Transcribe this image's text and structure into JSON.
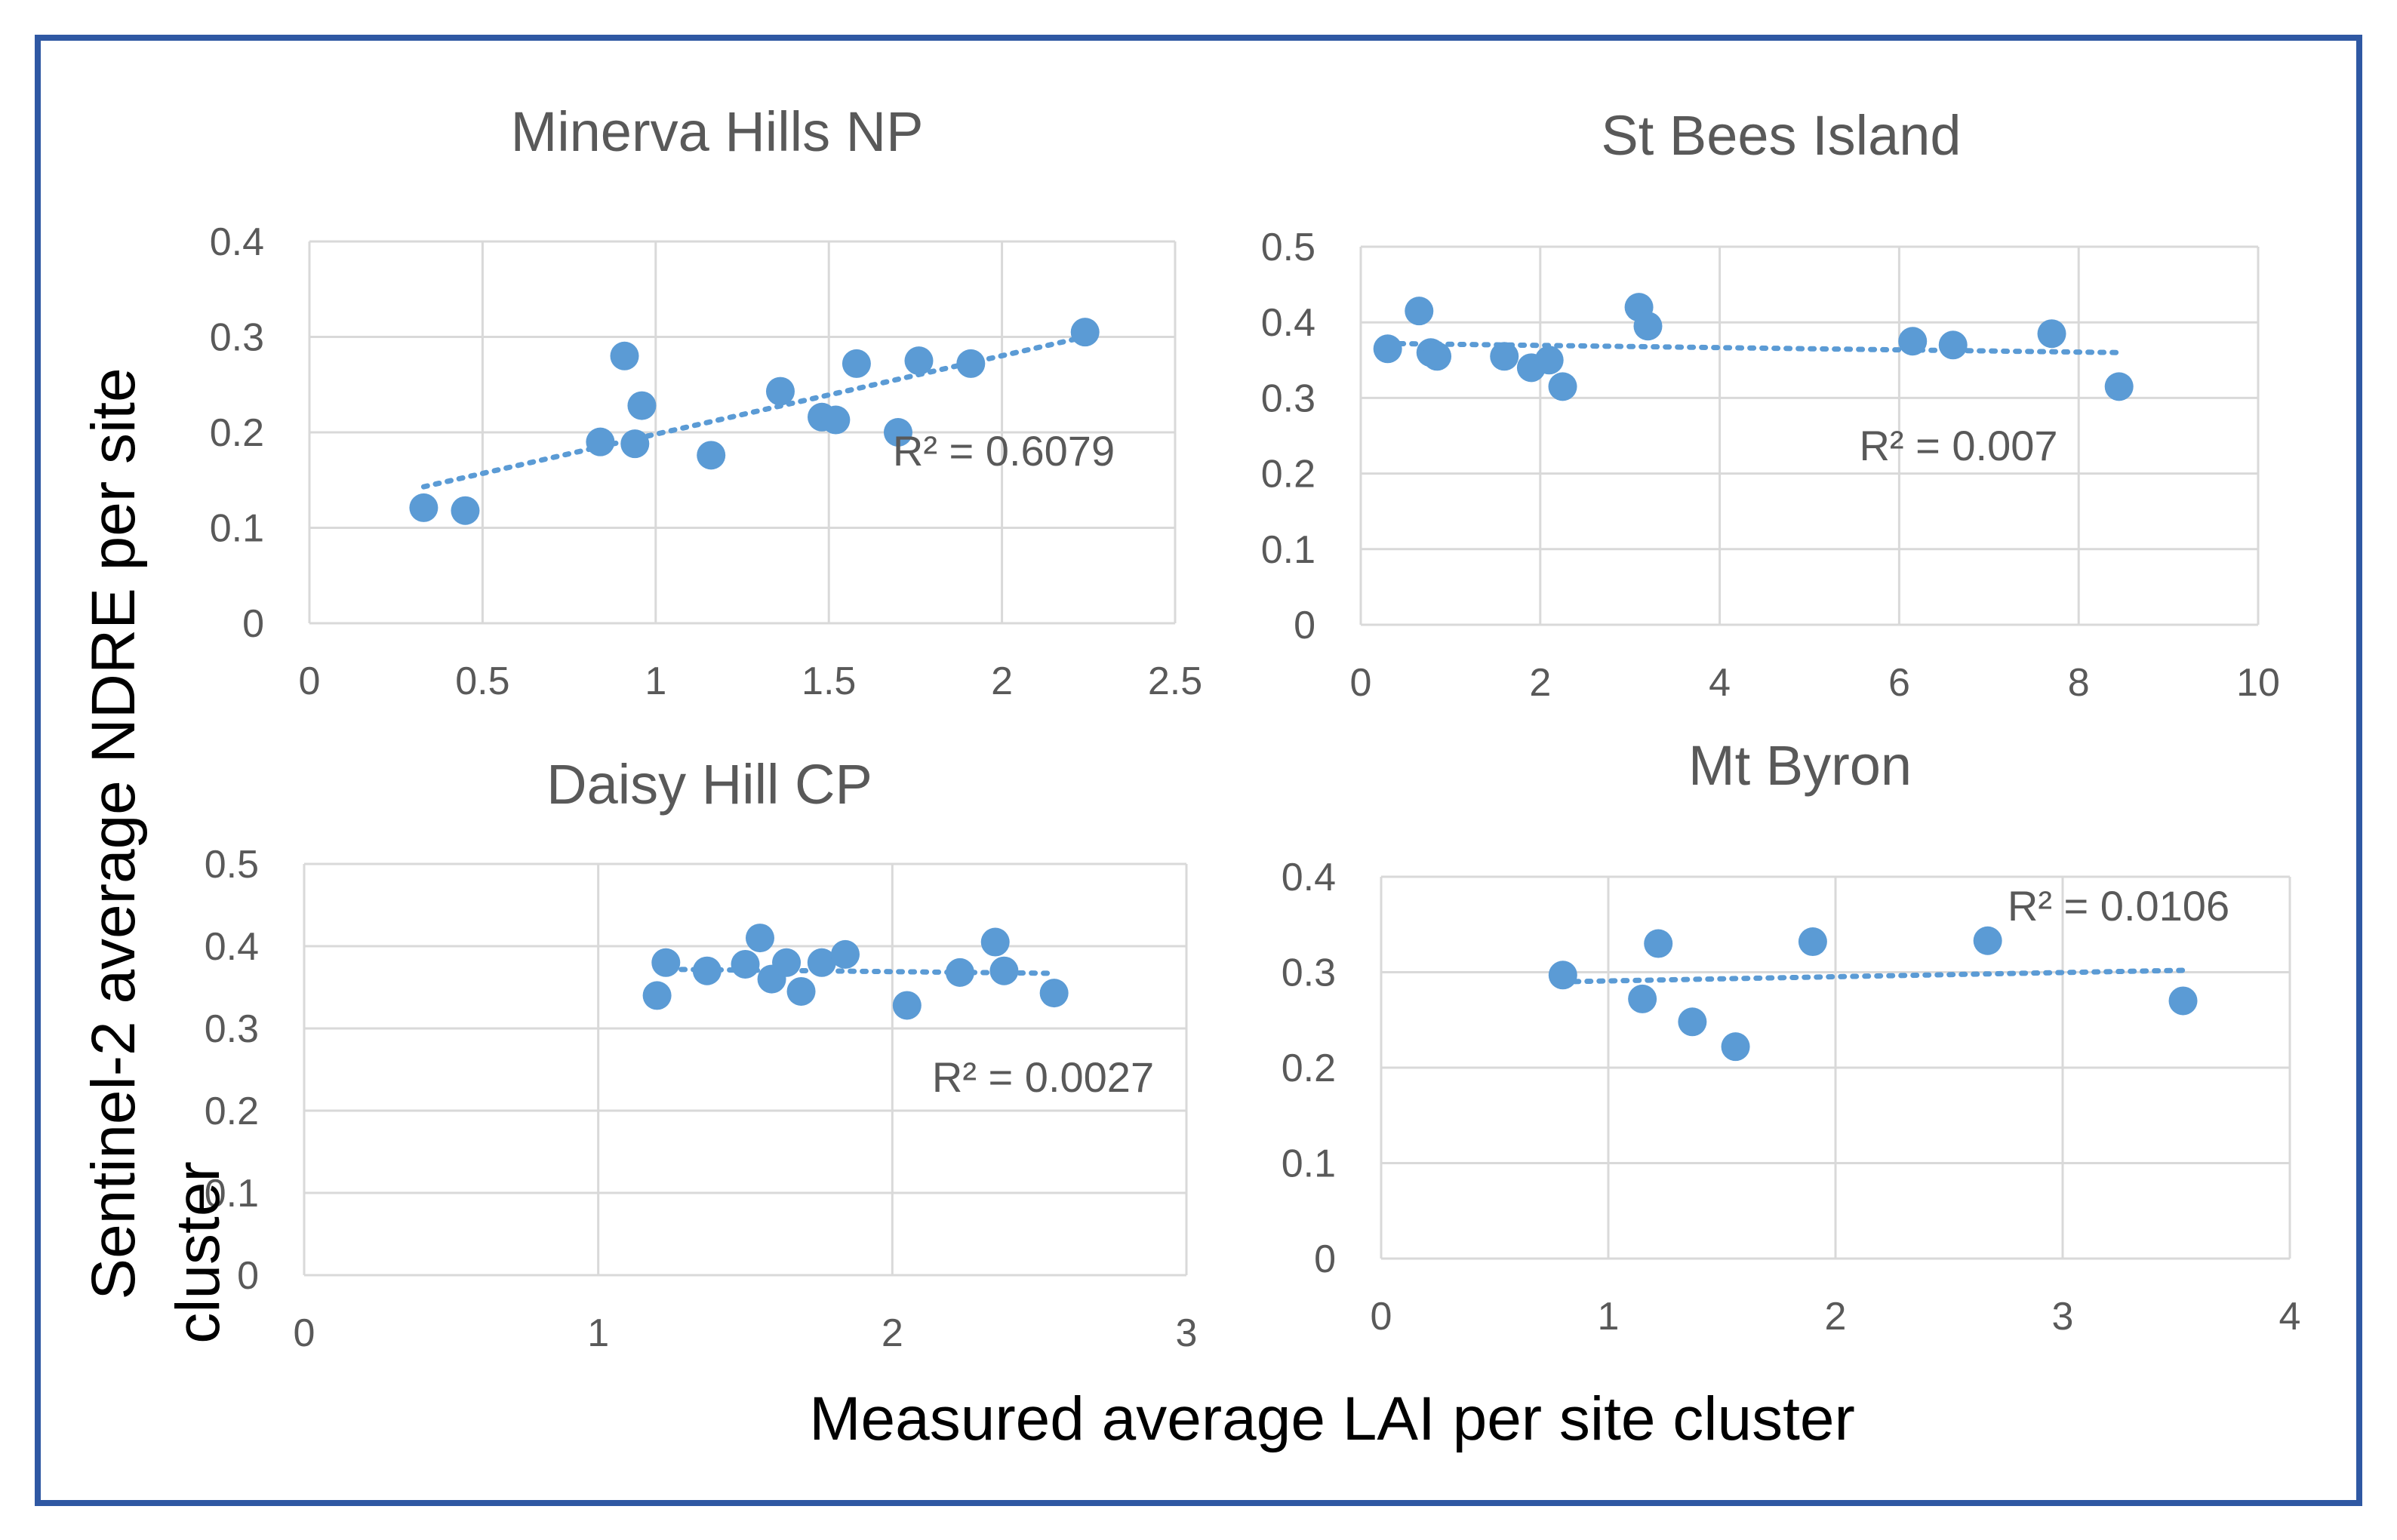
{
  "colors": {
    "frame": "#2f58a3",
    "marker": "#5b9bd5",
    "grid": "#d9d9d9",
    "text": "#595959"
  },
  "figure": {
    "y_label_line1": "Sentinel-2 average NDRE per site",
    "y_label_line2": "cluster",
    "x_label": "Measured average LAI per site cluster"
  },
  "chart_data": [
    {
      "type": "scatter",
      "title": "Minerva Hills NP",
      "xlabel": "",
      "ylabel": "",
      "xlim": [
        0,
        2.5
      ],
      "ylim": [
        0,
        0.4
      ],
      "xticks": [
        0,
        0.5,
        1,
        1.5,
        2,
        2.5
      ],
      "yticks": [
        0,
        0.1,
        0.2,
        0.3,
        0.4
      ],
      "grid": true,
      "x": [
        0.33,
        0.45,
        0.84,
        0.91,
        0.94,
        0.96,
        1.16,
        1.36,
        1.48,
        1.52,
        1.58,
        1.7,
        1.76,
        1.91,
        2.24
      ],
      "y": [
        0.121,
        0.118,
        0.19,
        0.28,
        0.188,
        0.228,
        0.176,
        0.243,
        0.216,
        0.213,
        0.272,
        0.2,
        0.275,
        0.272,
        0.305
      ],
      "trendline": {
        "x": [
          0.33,
          2.24
        ],
        "y": [
          0.143,
          0.3
        ]
      },
      "r2_label": "R² = 0.6079"
    },
    {
      "type": "scatter",
      "title": "St Bees Island",
      "xlabel": "",
      "ylabel": "",
      "xlim": [
        0,
        10
      ],
      "ylim": [
        0,
        0.5
      ],
      "xticks": [
        0,
        2,
        4,
        6,
        8,
        10
      ],
      "yticks": [
        0,
        0.1,
        0.2,
        0.3,
        0.4,
        0.5
      ],
      "grid": true,
      "x": [
        0.3,
        0.65,
        0.78,
        0.85,
        1.6,
        1.9,
        2.1,
        2.25,
        3.1,
        3.2,
        6.15,
        6.6,
        7.7,
        8.45
      ],
      "y": [
        0.365,
        0.415,
        0.36,
        0.355,
        0.355,
        0.34,
        0.35,
        0.315,
        0.42,
        0.395,
        0.375,
        0.37,
        0.385,
        0.315
      ],
      "trendline": {
        "x": [
          0.3,
          8.45
        ],
        "y": [
          0.372,
          0.36
        ]
      },
      "r2_label": "R² = 0.007"
    },
    {
      "type": "scatter",
      "title": "Daisy Hill CP",
      "xlabel": "",
      "ylabel": "",
      "xlim": [
        0,
        3
      ],
      "ylim": [
        0,
        0.5
      ],
      "xticks": [
        0,
        1,
        2,
        3
      ],
      "yticks": [
        0,
        0.1,
        0.2,
        0.3,
        0.4,
        0.5
      ],
      "grid": true,
      "x": [
        1.2,
        1.23,
        1.37,
        1.5,
        1.55,
        1.59,
        1.64,
        1.69,
        1.76,
        1.84,
        2.05,
        2.23,
        2.35,
        2.38,
        2.55
      ],
      "y": [
        0.34,
        0.38,
        0.37,
        0.378,
        0.41,
        0.36,
        0.38,
        0.345,
        0.38,
        0.39,
        0.328,
        0.368,
        0.405,
        0.37,
        0.343
      ],
      "trendline": {
        "x": [
          1.2,
          2.55
        ],
        "y": [
          0.372,
          0.367
        ]
      },
      "r2_label": "R² = 0.0027"
    },
    {
      "type": "scatter",
      "title": "Mt Byron",
      "xlabel": "",
      "ylabel": "",
      "xlim": [
        0,
        4
      ],
      "ylim": [
        0,
        0.4
      ],
      "xticks": [
        0,
        1,
        2,
        3,
        4
      ],
      "yticks": [
        0,
        0.1,
        0.2,
        0.3,
        0.4
      ],
      "grid": true,
      "x": [
        0.8,
        1.15,
        1.22,
        1.37,
        1.56,
        1.9,
        2.67,
        3.53
      ],
      "y": [
        0.297,
        0.272,
        0.33,
        0.248,
        0.222,
        0.332,
        0.333,
        0.27
      ],
      "trendline": {
        "x": [
          0.8,
          3.53
        ],
        "y": [
          0.29,
          0.302
        ]
      },
      "r2_label": "R² = 0.0106"
    }
  ]
}
